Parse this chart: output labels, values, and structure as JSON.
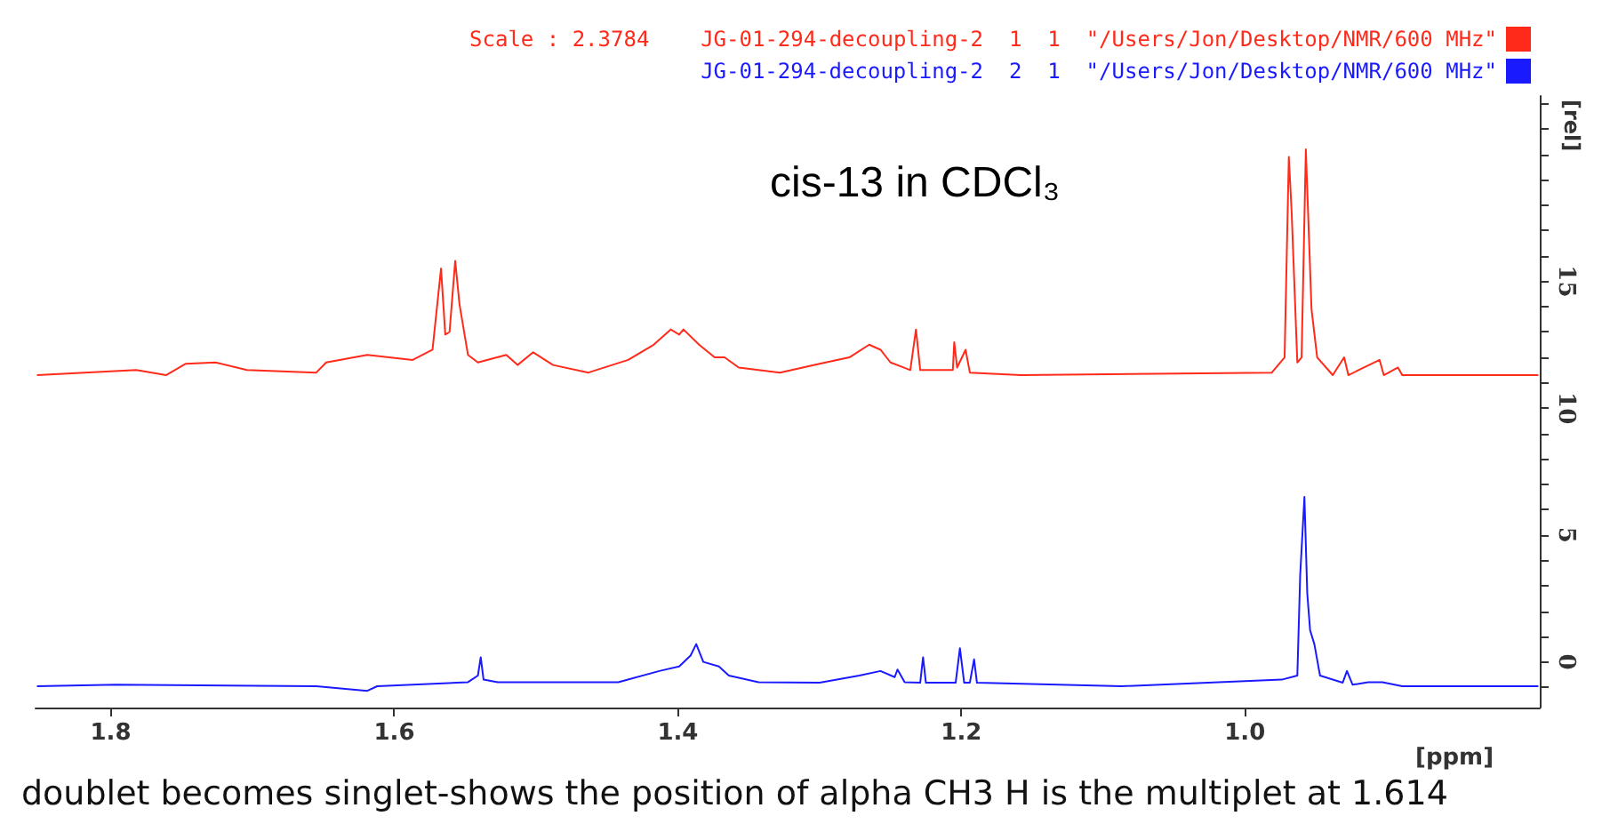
{
  "chart_data": {
    "type": "line",
    "title": "cis-13 in CDCl₃",
    "xlabel": "[ppm]",
    "ylabel": "[rel]",
    "annotations": [
      "doublet becomes singlet-shows the position of alpha CH3 H is the multiplet at 1.614"
    ],
    "xlim": [
      1.853,
      0.792
    ],
    "xticks": [
      1.8,
      1.6,
      1.4,
      1.2,
      {
        "value": 1,
        "label": "1.0"
      }
    ],
    "ylim": [
      -1.8,
      22.3
    ],
    "yticks": [
      {
        "value": -1,
        "label": null
      },
      0,
      {
        "value": 1,
        "label": null
      },
      {
        "value": 2,
        "label": null
      },
      {
        "value": 3,
        "label": null
      },
      {
        "value": 4,
        "label": null
      },
      5,
      {
        "value": 6,
        "label": null
      },
      {
        "value": 7,
        "label": null
      },
      {
        "value": 8,
        "label": null
      },
      {
        "value": 9,
        "label": null
      },
      10,
      {
        "value": 11,
        "label": null
      },
      {
        "value": 12,
        "label": null
      },
      {
        "value": 13,
        "label": null
      },
      {
        "value": 14,
        "label": null
      },
      15,
      {
        "value": 16,
        "label": null
      },
      {
        "value": 17,
        "label": null
      },
      {
        "value": 18,
        "label": null
      },
      {
        "value": 19,
        "label": null
      },
      {
        "value": 20,
        "label": null
      },
      {
        "value": 21,
        "label": null
      },
      {
        "value": 22,
        "label": null
      }
    ],
    "grid": false,
    "legend": "top right",
    "marker": "none",
    "line_style": "solid",
    "series": [
      {
        "name": "Scale : 2.3784    JG-01-294-decoupling-2  1  1  \"/Users/Jon/Desktop/NMR/600 MHz\"",
        "color": "#ff2a1a",
        "x": [
          1.852,
          1.782,
          1.761,
          1.747,
          1.726,
          1.704,
          1.655,
          1.648,
          1.619,
          1.587,
          1.573,
          1.567,
          1.564,
          1.561,
          1.557,
          1.554,
          1.548,
          1.541,
          1.521,
          1.513,
          1.502,
          1.488,
          1.463,
          1.435,
          1.417,
          1.405,
          1.399,
          1.396,
          1.385,
          1.374,
          1.367,
          1.357,
          1.328,
          1.3,
          1.279,
          1.265,
          1.257,
          1.25,
          1.236,
          1.232,
          1.229,
          1.206,
          1.205,
          1.203,
          1.197,
          1.194,
          1.158,
          0.981,
          0.972,
          0.969,
          0.967,
          0.963,
          0.96,
          0.957,
          0.953,
          0.949,
          0.938,
          0.93,
          0.927,
          0.916,
          0.905,
          0.902,
          0.892,
          0.889,
          0.793
        ],
        "values": [
          11.3,
          11.5,
          11.3,
          11.75,
          11.8,
          11.5,
          11.4,
          11.8,
          12.1,
          11.9,
          12.3,
          15.5,
          12.9,
          13.0,
          15.8,
          14.1,
          12.1,
          11.8,
          12.1,
          11.7,
          12.2,
          11.7,
          11.4,
          11.9,
          12.5,
          13.1,
          12.9,
          13.1,
          12.5,
          12.0,
          12.0,
          11.6,
          11.4,
          11.75,
          12.0,
          12.5,
          12.3,
          11.8,
          11.5,
          13.1,
          11.5,
          11.5,
          12.6,
          11.6,
          12.3,
          11.4,
          11.3,
          11.4,
          12.0,
          19.9,
          17.7,
          11.8,
          12.0,
          20.2,
          13.9,
          12.0,
          11.3,
          12.0,
          11.3,
          11.6,
          11.9,
          11.3,
          11.6,
          11.3,
          11.3
        ]
      },
      {
        "name": "JG-01-294-decoupling-2  2  1  \"/Users/Jon/Desktop/NMR/600 MHz\"",
        "color": "#1a1aff",
        "x": [
          1.852,
          1.796,
          1.655,
          1.619,
          1.612,
          1.548,
          1.541,
          1.539,
          1.537,
          1.527,
          1.442,
          1.413,
          1.399,
          1.391,
          1.387,
          1.382,
          1.371,
          1.364,
          1.343,
          1.3,
          1.272,
          1.257,
          1.247,
          1.245,
          1.24,
          1.229,
          1.227,
          1.225,
          1.204,
          1.201,
          1.198,
          1.194,
          1.191,
          1.189,
          1.087,
          0.974,
          0.963,
          0.961,
          0.958,
          0.956,
          0.954,
          0.951,
          0.947,
          0.931,
          0.928,
          0.924,
          0.913,
          0.903,
          0.889,
          0.793
        ],
        "values": [
          -0.96,
          -0.9,
          -0.96,
          -1.14,
          -0.96,
          -0.8,
          -0.54,
          0.18,
          -0.7,
          -0.8,
          -0.8,
          -0.36,
          -0.18,
          0.25,
          0.7,
          0.0,
          -0.18,
          -0.54,
          -0.8,
          -0.82,
          -0.54,
          -0.36,
          -0.6,
          -0.3,
          -0.8,
          -0.82,
          0.18,
          -0.82,
          -0.82,
          0.54,
          -0.82,
          -0.82,
          0.1,
          -0.82,
          -0.96,
          -0.7,
          -0.54,
          3.4,
          6.5,
          2.7,
          1.25,
          0.7,
          -0.54,
          -0.82,
          -0.36,
          -0.9,
          -0.8,
          -0.8,
          -0.96,
          -0.96
        ]
      }
    ]
  }
}
